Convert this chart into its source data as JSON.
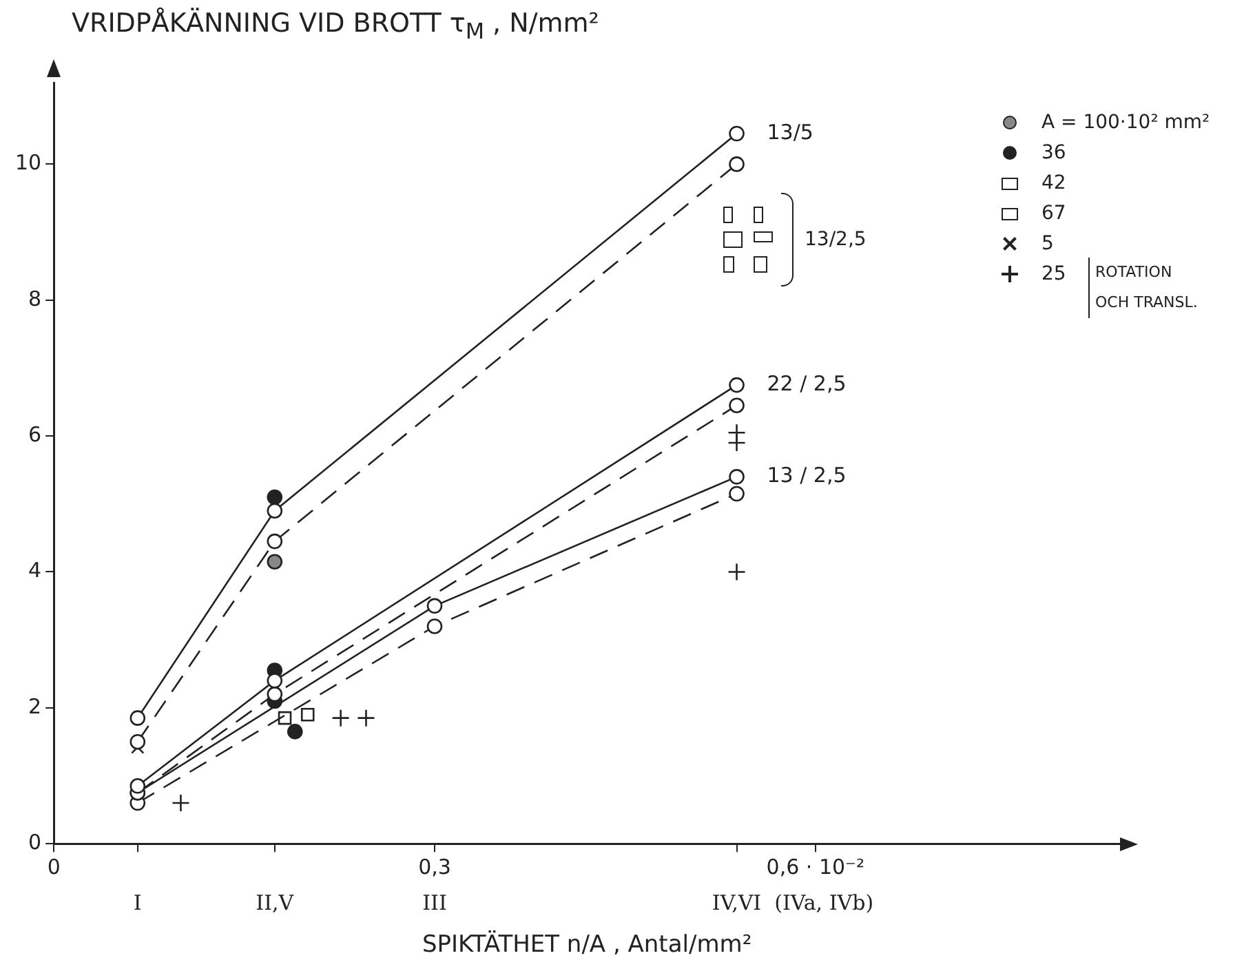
{
  "chart_data": {
    "type": "line",
    "ylabel": "VRIDPÅKÄNNING VID BROTT τ$_{M}$ , N/mm²",
    "xlabel": "SPIKTÄTHET n/A , Antal/mm²",
    "xlim": [
      0,
      0.84
    ],
    "xticks": [
      0,
      {
        "value": 0.066,
        "label": null
      },
      {
        "value": 0.174,
        "label": null
      },
      {
        "value": 0.3,
        "label": "0,3"
      },
      {
        "value": 0.538,
        "label": null
      },
      {
        "value": 0.6,
        "label": "0,6 · 10⁻²"
      }
    ],
    "ylim": [
      0,
      11.2
    ],
    "yticks": [
      0,
      2,
      4,
      6,
      8,
      10
    ],
    "legend": "top right",
    "series": [
      {
        "name": "13/5",
        "color": "#222222",
        "marker": "circle",
        "line_style": "solid",
        "x": [
          0.066,
          0.174,
          0.538
        ],
        "values": [
          1.85,
          4.9,
          10.45
        ]
      },
      {
        "color": "#222222",
        "marker": "circle",
        "line_style": "dashed",
        "x": [
          0.066,
          0.174,
          0.538
        ],
        "values": [
          1.5,
          4.45,
          10.0
        ]
      },
      {
        "name": "22 / 2,5",
        "color": "#222222",
        "marker": "circle",
        "line_style": "solid",
        "x": [
          0.066,
          0.174,
          0.538
        ],
        "values": [
          0.85,
          2.4,
          6.75
        ]
      },
      {
        "color": "#222222",
        "marker": "circle",
        "line_style": "dashed",
        "x": [
          0.066,
          0.174,
          0.538
        ],
        "values": [
          0.75,
          2.2,
          6.45
        ]
      },
      {
        "name": "13 / 2,5",
        "color": "#222222",
        "marker": "circle",
        "line_style": "solid",
        "x": [
          0.066,
          0.3,
          0.538
        ],
        "values": [
          0.75,
          3.5,
          5.4
        ]
      },
      {
        "color": "#222222",
        "marker": "circle",
        "line_style": "dashed",
        "x": [
          0.066,
          0.3,
          0.538
        ],
        "values": [
          0.6,
          3.2,
          5.15
        ]
      },
      {
        "type": "scatter",
        "name": "A = 100·10² mm²",
        "color": "#888888",
        "marker": "circle",
        "x": [
          0.174
        ],
        "values": [
          4.15
        ]
      },
      {
        "type": "scatter",
        "name": "36",
        "color": "#222222",
        "marker": "circle",
        "x": [
          0.174,
          0.174,
          0.174,
          0.19
        ],
        "values": [
          5.1,
          2.55,
          2.1,
          1.65
        ]
      },
      {
        "type": "scatter",
        "name": "42",
        "color": "#222222",
        "marker": "square",
        "x": [
          0.2
        ],
        "values": [
          1.9
        ]
      },
      {
        "type": "scatter",
        "name": "67",
        "color": "#222222",
        "marker": "square",
        "x": [
          0.182
        ],
        "values": [
          1.85
        ]
      },
      {
        "type": "scatter",
        "name": "5",
        "color": "#222222",
        "marker": "cross",
        "x": [
          0.066
        ],
        "values": [
          1.42
        ]
      },
      {
        "type": "scatter",
        "name": "25",
        "color": "#222222",
        "marker": "plus",
        "x": [
          0.1,
          0.226,
          0.246,
          0.538,
          0.538,
          0.538
        ],
        "values": [
          0.6,
          1.85,
          1.85,
          6.05,
          5.9,
          4.0
        ]
      }
    ],
    "annotations": [
      "I",
      "II,V",
      "III",
      "IV,VI  (IVa, IVb)",
      "13/2,5",
      "ROTATION",
      "OCH TRANSL."
    ]
  }
}
